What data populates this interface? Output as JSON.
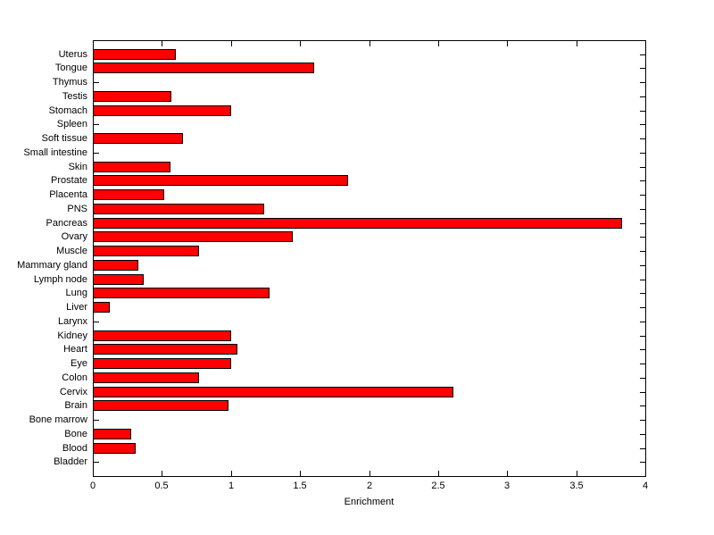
{
  "chart_data": {
    "type": "bar",
    "orientation": "horizontal",
    "title": "",
    "xlabel": "Enrichment",
    "ylabel": "",
    "xlim": [
      0,
      4
    ],
    "xticks": [
      0,
      0.5,
      1,
      1.5,
      2,
      2.5,
      3,
      3.5,
      4
    ],
    "xtick_labels": [
      "0",
      "0.5",
      "1",
      "1.5",
      "2",
      "2.5",
      "3",
      "3.5",
      "4"
    ],
    "grid": false,
    "legend": false,
    "category_order": "top-to-bottom",
    "categories": [
      "Uterus",
      "Tongue",
      "Thymus",
      "Testis",
      "Stomach",
      "Spleen",
      "Soft tissue",
      "Small intestine",
      "Skin",
      "Prostate",
      "Placenta",
      "PNS",
      "Pancreas",
      "Ovary",
      "Muscle",
      "Mammary gland",
      "Lymph node",
      "Lung",
      "Liver",
      "Larynx",
      "Kidney",
      "Heart",
      "Eye",
      "Colon",
      "Cervix",
      "Brain",
      "Bone marrow",
      "Bone",
      "Blood",
      "Bladder"
    ],
    "values": [
      0.6,
      1.6,
      0,
      0.57,
      1.0,
      0,
      0.65,
      0,
      0.56,
      1.85,
      0.52,
      1.24,
      3.83,
      1.45,
      0.77,
      0.33,
      0.37,
      1.28,
      0.12,
      0,
      1.0,
      1.05,
      1.0,
      0.77,
      2.61,
      0.98,
      0,
      0.28,
      0.31,
      0
    ],
    "bar_color": "#ff0000",
    "bar_edge_color": "#000000",
    "axis_color": "#000000",
    "background_color": "#ffffff"
  }
}
